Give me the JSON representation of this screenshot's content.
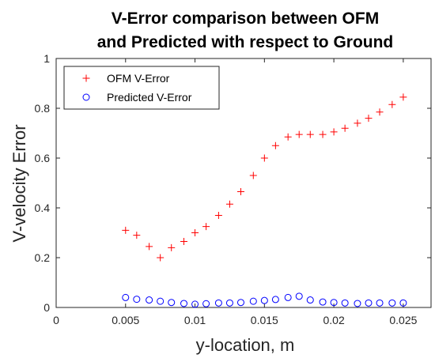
{
  "chart_data": {
    "type": "scatter",
    "title": [
      "V-Error comparison between OFM",
      "and Predicted with respect to Ground"
    ],
    "xlabel": "y-location, m",
    "ylabel": "V-velocity Error",
    "xlim": [
      0,
      0.027
    ],
    "ylim": [
      0,
      1
    ],
    "xticks": [
      0,
      0.005,
      0.01,
      0.015,
      0.02,
      0.025
    ],
    "xtick_labels": [
      "0",
      "0.005",
      "0.01",
      "0.015",
      "0.02",
      "0.025"
    ],
    "yticks": [
      0,
      0.2,
      0.4,
      0.6,
      0.8,
      1
    ],
    "ytick_labels": [
      "0",
      "0.2",
      "0.4",
      "0.6",
      "0.8",
      "1"
    ],
    "grid": false,
    "legend_position": "top-left",
    "x": [
      0.005,
      0.0058,
      0.0067,
      0.0075,
      0.0083,
      0.0092,
      0.01,
      0.0108,
      0.0117,
      0.0125,
      0.0133,
      0.0142,
      0.015,
      0.0158,
      0.0167,
      0.0175,
      0.0183,
      0.0192,
      0.02,
      0.0208,
      0.0217,
      0.0225,
      0.0233,
      0.0242,
      0.025
    ],
    "series": [
      {
        "name": "OFM V-Error",
        "marker": "plus",
        "color": "#ff0000",
        "values": [
          0.31,
          0.29,
          0.245,
          0.2,
          0.24,
          0.265,
          0.3,
          0.325,
          0.37,
          0.415,
          0.465,
          0.53,
          0.6,
          0.65,
          0.685,
          0.695,
          0.695,
          0.695,
          0.705,
          0.72,
          0.74,
          0.76,
          0.785,
          0.815,
          0.845
        ]
      },
      {
        "name": "Predicted V-Error",
        "marker": "circle",
        "color": "#0000ff",
        "values": [
          0.04,
          0.033,
          0.03,
          0.025,
          0.02,
          0.016,
          0.013,
          0.015,
          0.018,
          0.018,
          0.02,
          0.025,
          0.028,
          0.032,
          0.04,
          0.045,
          0.03,
          0.022,
          0.02,
          0.018,
          0.016,
          0.018,
          0.018,
          0.018,
          0.018
        ]
      }
    ]
  }
}
